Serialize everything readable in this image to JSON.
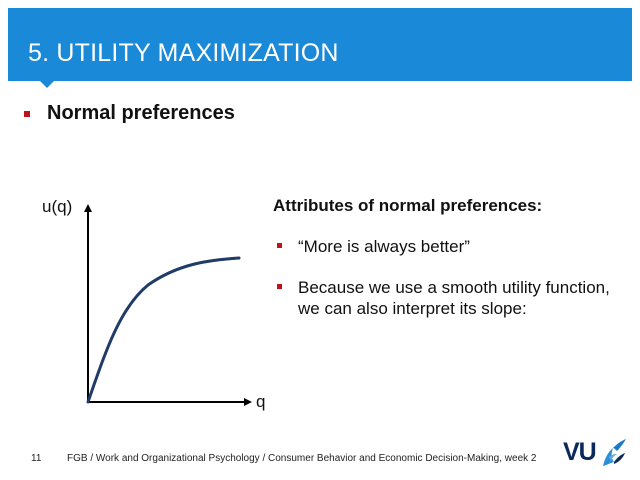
{
  "header": {
    "title": "5. UTILITY MAXIMIZATION"
  },
  "main_bullet": {
    "text": "Normal preferences"
  },
  "graph": {
    "y_label": "u(q)",
    "x_label": "q",
    "curve": "concave increasing utility curve"
  },
  "attributes": {
    "heading": "Attributes of normal preferences:",
    "items": [
      "“More is always better”",
      "Because we use a smooth utility function, we can also interpret its slope:"
    ]
  },
  "footer": {
    "page_number": "11",
    "text": "FGB / Work and Organizational Psychology / Consumer Behavior and Economic Decision-Making, week 2"
  },
  "logo": {
    "text": "VU",
    "icon": "griffin-icon"
  },
  "colors": {
    "header": "#1a8ad8",
    "bullet": "#c0121b",
    "curve": "#1f3b66",
    "logo": "#0b2a5b",
    "logo_accent": "#2c8fd6"
  }
}
